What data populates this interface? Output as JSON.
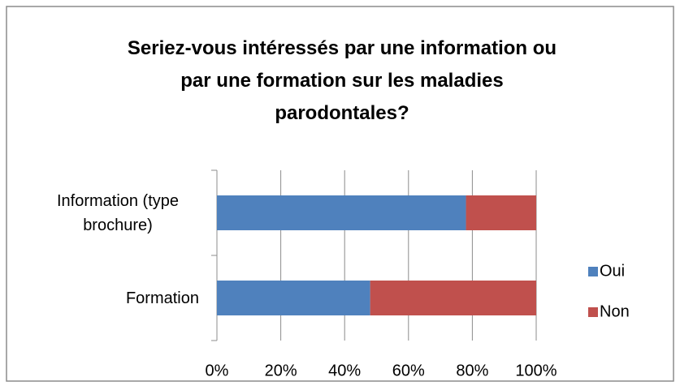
{
  "chart_data": {
    "type": "stacked_barh",
    "title": "Seriez-vous intéressés par une information ou par une formation sur les maladies parodontales?",
    "categories": [
      "Information (type brochure)",
      "Formation"
    ],
    "series": [
      {
        "name": "Oui",
        "color": "#4f81bd",
        "values": [
          78,
          48
        ]
      },
      {
        "name": "Non",
        "color": "#c0504d",
        "values": [
          22,
          52
        ]
      }
    ],
    "xlim": [
      0,
      100
    ],
    "xticks": [
      {
        "value": 0,
        "label": "0%"
      },
      {
        "value": 20,
        "label": "20%"
      },
      {
        "value": 40,
        "label": "40%"
      },
      {
        "value": 60,
        "label": "60%"
      },
      {
        "value": 80,
        "label": "80%"
      },
      {
        "value": 100,
        "label": "100%"
      }
    ],
    "grid": true,
    "legend": "right"
  }
}
